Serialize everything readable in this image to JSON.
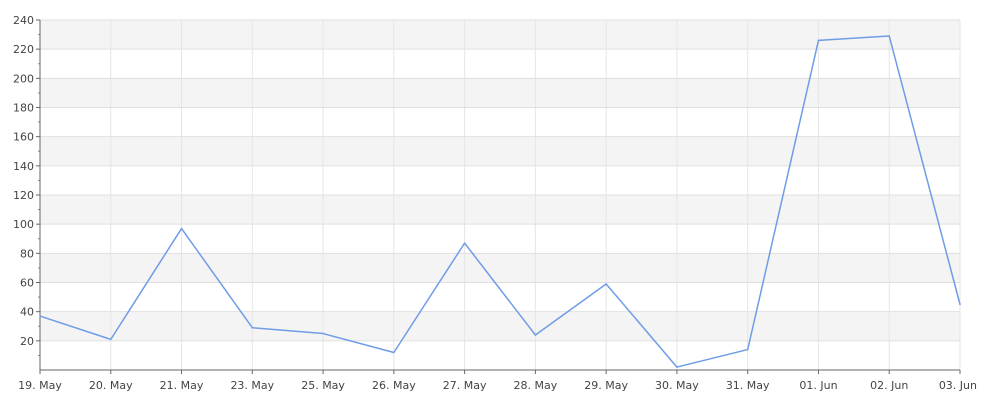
{
  "chart_data": {
    "type": "line",
    "title": "",
    "xlabel": "",
    "ylabel": "",
    "categories": [
      "19. May",
      "20. May",
      "21. May",
      "23. May",
      "25. May",
      "26. May",
      "27. May",
      "28. May",
      "29. May",
      "30. May",
      "31. May",
      "01. Jun",
      "02. Jun",
      "03. Jun"
    ],
    "series": [
      {
        "values": [
          37,
          21,
          97,
          29,
          25,
          12,
          87,
          24,
          59,
          2,
          14,
          226,
          229,
          45
        ]
      }
    ],
    "ylim": [
      0,
      240
    ],
    "yticks": [
      "20",
      "40",
      "60",
      "80",
      "100",
      "120",
      "140",
      "160",
      "180",
      "200",
      "220",
      "240"
    ],
    "grid": true,
    "line_color": "#6f9ce6"
  }
}
